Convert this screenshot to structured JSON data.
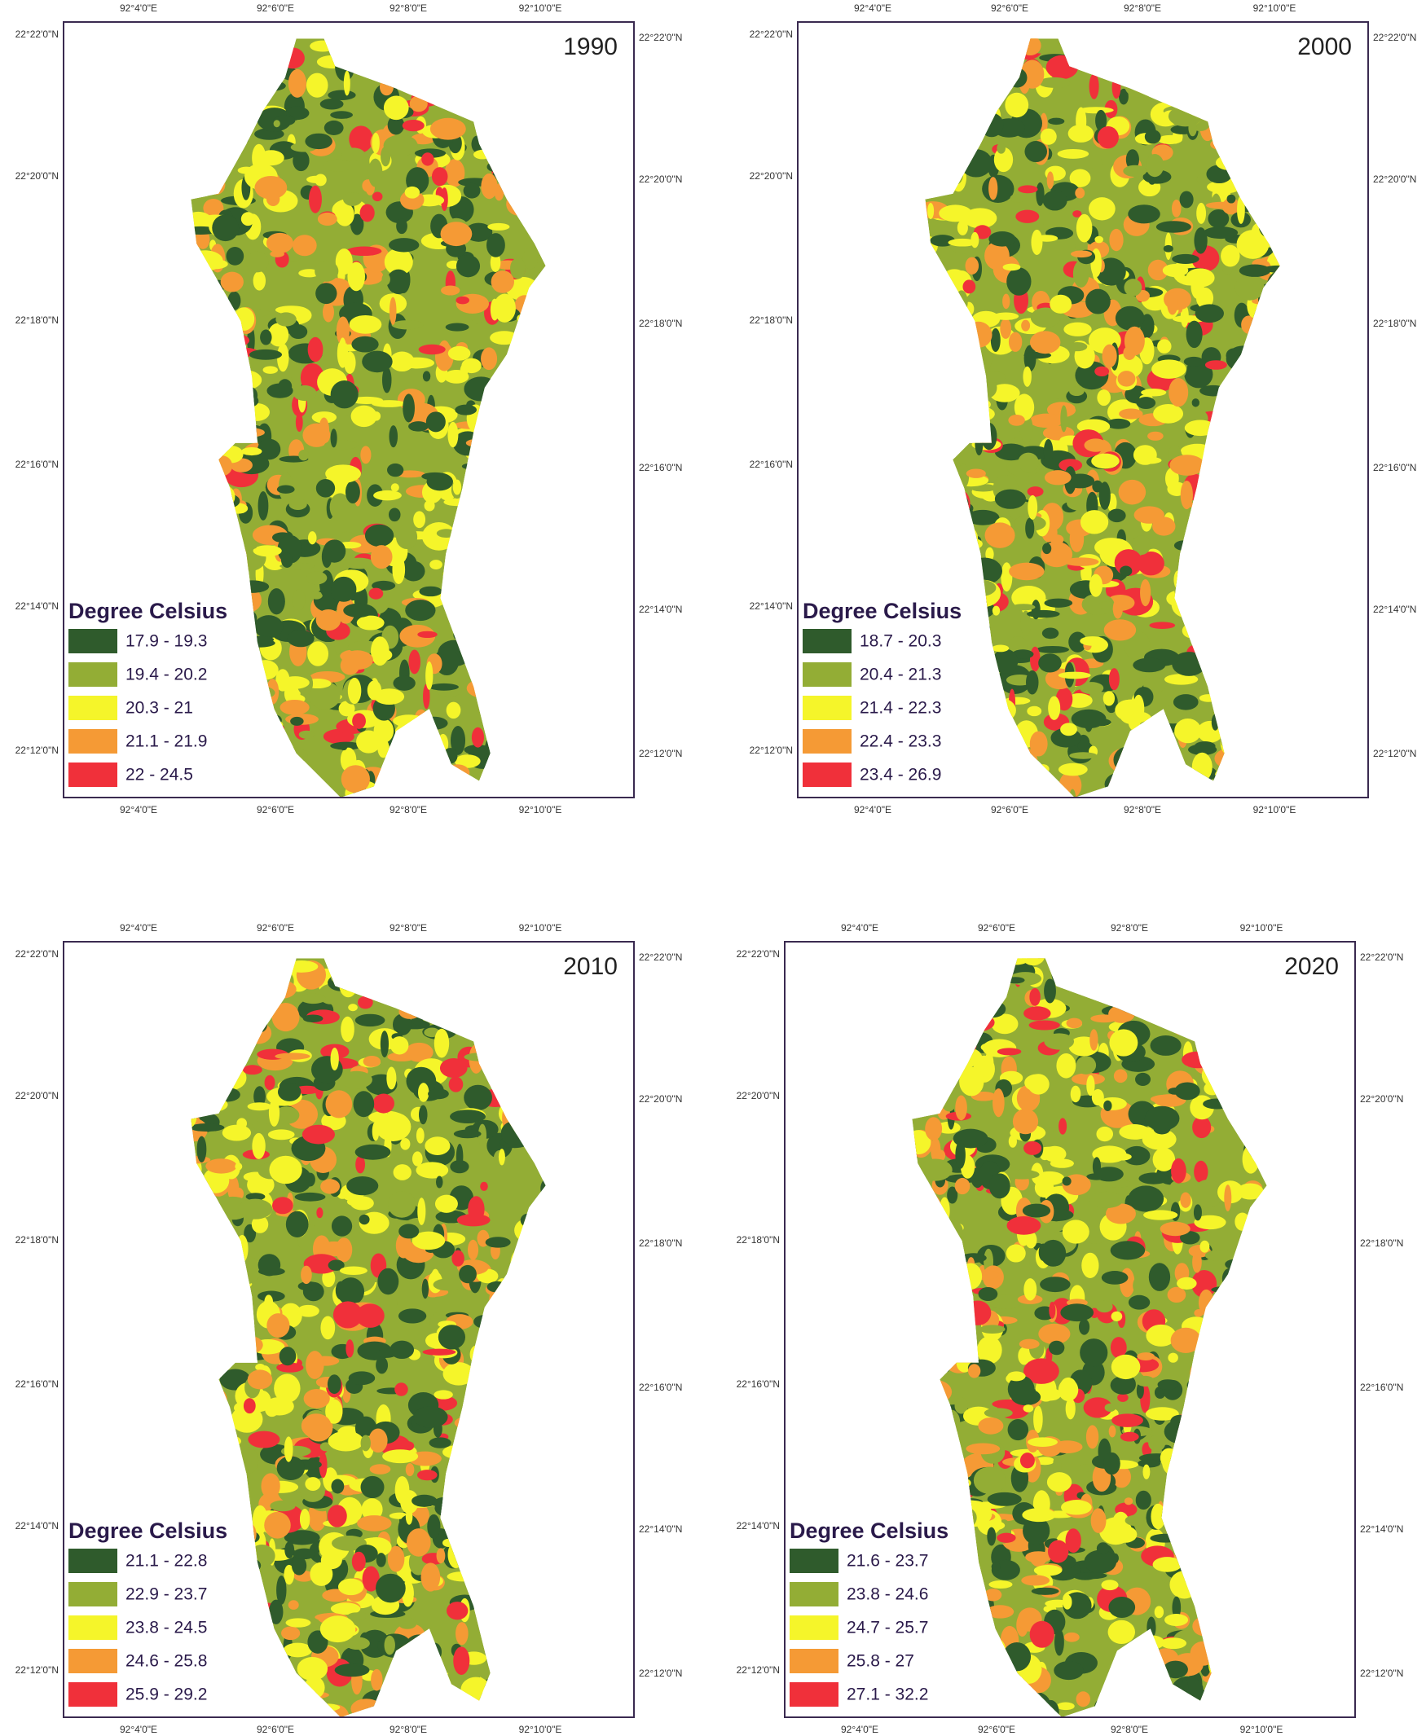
{
  "longitude_labels": [
    "92°4'0\"E",
    "92°6'0\"E",
    "92°8'0\"E",
    "92°10'0\"E"
  ],
  "latitude_labels": [
    "22°22'0\"N",
    "22°20'0\"N",
    "22°18'0\"N",
    "22°16'0\"N",
    "22°14'0\"N",
    "22°12'0\"N"
  ],
  "panels": [
    {
      "year": "1990",
      "legend": {
        "title": "Degree Celsius",
        "classes": [
          {
            "label": "17.9 - 19.3",
            "color": "#2f5b2c"
          },
          {
            "label": "19.4 - 20.2",
            "color": "#93ad35"
          },
          {
            "label": "20.3 - 21",
            "color": "#f5f52a"
          },
          {
            "label": "21.1 - 21.9",
            "color": "#f59a35"
          },
          {
            "label": "22 - 24.5",
            "color": "#f0303a"
          }
        ]
      }
    },
    {
      "year": "2000",
      "legend": {
        "title": "Degree Celsius",
        "classes": [
          {
            "label": "18.7 - 20.3",
            "color": "#2f5b2c"
          },
          {
            "label": "20.4 - 21.3",
            "color": "#93ad35"
          },
          {
            "label": "21.4 - 22.3",
            "color": "#f5f52a"
          },
          {
            "label": "22.4 - 23.3",
            "color": "#f59a35"
          },
          {
            "label": "23.4 - 26.9",
            "color": "#f0303a"
          }
        ]
      }
    },
    {
      "year": "2010",
      "legend": {
        "title": "Degree Celsius",
        "classes": [
          {
            "label": "21.1 - 22.8",
            "color": "#2f5b2c"
          },
          {
            "label": "22.9 - 23.7",
            "color": "#93ad35"
          },
          {
            "label": "23.8 - 24.5",
            "color": "#f5f52a"
          },
          {
            "label": "24.6 - 25.8",
            "color": "#f59a35"
          },
          {
            "label": "25.9 - 29.2",
            "color": "#f0303a"
          }
        ]
      }
    },
    {
      "year": "2020",
      "legend": {
        "title": "Degree Celsius",
        "classes": [
          {
            "label": "21.6 - 23.7",
            "color": "#2f5b2c"
          },
          {
            "label": "23.8 - 24.6",
            "color": "#93ad35"
          },
          {
            "label": "24.7 - 25.7",
            "color": "#f5f52a"
          },
          {
            "label": "25.8 - 27",
            "color": "#f59a35"
          },
          {
            "label": "27.1 - 32.2",
            "color": "#f0303a"
          }
        ]
      }
    }
  ]
}
